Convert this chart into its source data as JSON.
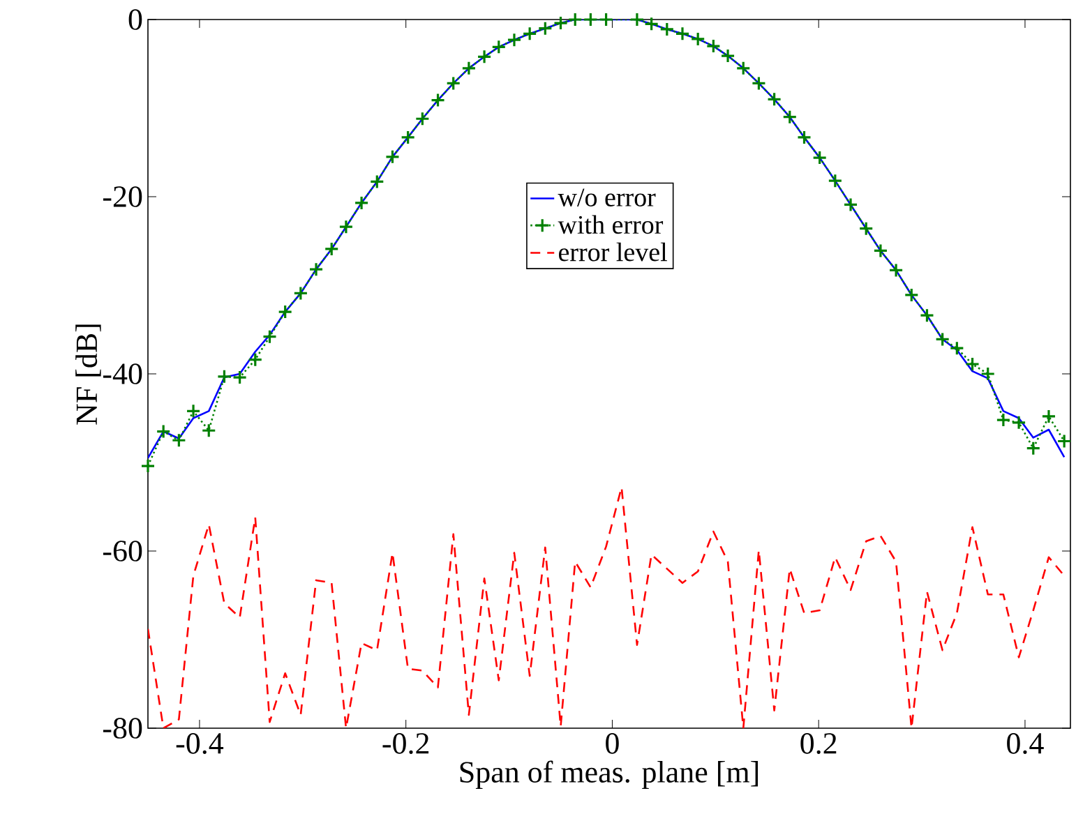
{
  "chart_data": {
    "type": "line",
    "xlabel": "Span of meas. plane [m]",
    "ylabel": "NF [dB]",
    "xlim": [
      -0.45,
      0.444
    ],
    "ylim": [
      -80,
      0
    ],
    "xticks": [
      -0.4,
      -0.2,
      0,
      0.2,
      0.4
    ],
    "yticks": [
      -80,
      -60,
      -40,
      -20,
      0
    ],
    "grid": false,
    "legend": "top",
    "x": [
      -0.45,
      -0.435,
      -0.42,
      -0.406,
      -0.391,
      -0.376,
      -0.361,
      -0.346,
      -0.332,
      -0.317,
      -0.302,
      -0.287,
      -0.272,
      -0.258,
      -0.243,
      -0.228,
      -0.213,
      -0.198,
      -0.184,
      -0.169,
      -0.154,
      -0.139,
      -0.124,
      -0.11,
      -0.095,
      -0.08,
      -0.065,
      -0.05,
      -0.036,
      -0.021,
      -0.006,
      0.009,
      0.024,
      0.038,
      0.053,
      0.068,
      0.083,
      0.098,
      0.112,
      0.127,
      0.142,
      0.157,
      0.172,
      0.186,
      0.201,
      0.216,
      0.231,
      0.246,
      0.26,
      0.275,
      0.29,
      0.305,
      0.32,
      0.334,
      0.349,
      0.364,
      0.379,
      0.394,
      0.408,
      0.423,
      0.438
    ],
    "series": [
      {
        "name": "w/o error",
        "color": "#0000ff",
        "line_style": "solid",
        "marker": "none",
        "values": [
          -49.5,
          -46.5,
          -47.3,
          -45.0,
          -44.2,
          -40.4,
          -40.0,
          -37.5,
          -35.6,
          -33.0,
          -30.9,
          -28.2,
          -25.9,
          -23.4,
          -20.7,
          -18.3,
          -15.5,
          -13.3,
          -11.2,
          -9.1,
          -7.2,
          -5.5,
          -4.2,
          -3.1,
          -2.3,
          -1.6,
          -1.0,
          -0.4,
          0,
          0,
          0,
          0,
          0,
          -0.5,
          -1.1,
          -1.6,
          -2.2,
          -3.0,
          -4.1,
          -5.5,
          -7.2,
          -9.0,
          -11.0,
          -13.3,
          -15.6,
          -18.2,
          -20.9,
          -23.6,
          -26.1,
          -28.3,
          -31.1,
          -33.4,
          -36.1,
          -37.3,
          -39.7,
          -40.5,
          -44.2,
          -45.0,
          -47.2,
          -46.3,
          -49.4
        ]
      },
      {
        "name": "with error",
        "color": "#008000",
        "line_style": "dotted",
        "marker": "cross",
        "values": [
          -50.4,
          -46.5,
          -47.5,
          -44.2,
          -46.4,
          -40.3,
          -40.4,
          -38.4,
          -35.8,
          -33.0,
          -30.9,
          -28.2,
          -25.9,
          -23.4,
          -20.7,
          -18.3,
          -15.5,
          -13.3,
          -11.2,
          -9.1,
          -7.2,
          -5.5,
          -4.2,
          -3.1,
          -2.3,
          -1.6,
          -1.0,
          -0.4,
          0,
          0,
          0,
          null,
          0,
          -0.5,
          -1.1,
          -1.6,
          -2.2,
          -3.0,
          -4.1,
          -5.5,
          -7.2,
          -9.0,
          -11.0,
          -13.3,
          -15.6,
          -18.2,
          -20.9,
          -23.6,
          -26.1,
          -28.3,
          -31.1,
          -33.4,
          -36.1,
          -37.1,
          -38.9,
          -40.0,
          -45.2,
          -45.5,
          -48.4,
          -44.8,
          -47.6
        ]
      },
      {
        "name": "error level",
        "color": "#ff0000",
        "line_style": "dashed",
        "marker": "none",
        "values": [
          -68.8,
          -80,
          -79.0,
          -62.8,
          -57.0,
          -65.9,
          -67.5,
          -56.2,
          -79.3,
          -73.8,
          -78.5,
          -63.3,
          -63.6,
          -80,
          -70.4,
          -71.2,
          -60.2,
          -73.3,
          -73.5,
          -75.4,
          -58.1,
          -78.5,
          -63.1,
          -74.6,
          -60.2,
          -74.1,
          -59.6,
          -79.8,
          -61.2,
          -64.1,
          -59.5,
          -52.8,
          -70.6,
          -60.4,
          -62.0,
          -63.6,
          -62.3,
          -57.8,
          -61.2,
          -80,
          -59.9,
          -78.0,
          -62.0,
          -67.0,
          -66.7,
          -60.7,
          -64.4,
          -58.9,
          -58.3,
          -61.2,
          -80,
          -64.6,
          -71.2,
          -67.0,
          -57.3,
          -64.9,
          -64.9,
          -72.0,
          -66.7,
          -60.7,
          -62.8
        ]
      }
    ]
  }
}
